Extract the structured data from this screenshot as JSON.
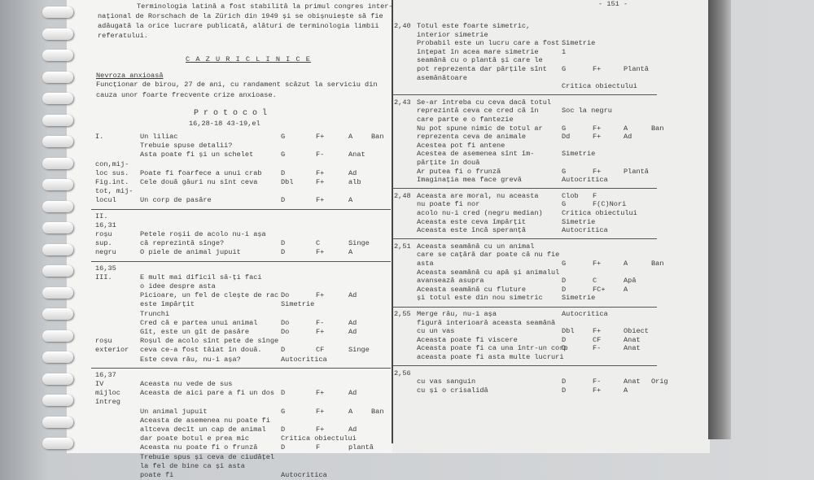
{
  "left": {
    "header_lines": [
      "Terminologia latină a fost stabilită la primul congres inter-",
      "național de Rorschach de la Zürich din 1949 și se obișnuiește să fie",
      "adăugată la orice lucrare publicată, alături de terminologia limbii",
      "referatului."
    ],
    "section_title": "C A Z U R I   C L I N I C E",
    "subtitle": "Nevroza anxioasă",
    "intro": [
      "Funcționar de birou, 27 de ani, cu randament scăzut la serviciu din",
      "cauza unor foarte frecvente crize anxioase."
    ],
    "protocol_title": "P r o t o c o l",
    "protocol_time": "16,28-18 43-19,el",
    "blocks": [
      {
        "rows": [
          {
            "label": "I.",
            "text": "Un liliac",
            "codes": [
              "G",
              "F+",
              "A",
              "Ban"
            ]
          },
          {
            "text": "Trebuie spuse detalii?"
          },
          {
            "text": "Asta poate fi și un schelet",
            "codes": [
              "G",
              "F-",
              "Anat"
            ]
          },
          {
            "label": "con,mij-"
          },
          {
            "label": "loc sus.",
            "text": "Poate fi foarfece a unui crab",
            "codes": [
              "D",
              "F+",
              "Ad"
            ]
          },
          {
            "label": "Fig.int.",
            "text": "Cele două găuri nu sînt ceva",
            "codes": [
              "Dbl",
              "F+",
              "alb"
            ]
          },
          {
            "label": "tot, mij-"
          },
          {
            "label": "locul",
            "text": "Un corp de pasăre",
            "codes": [
              "D",
              "F+",
              "A"
            ]
          }
        ]
      },
      {
        "rows": [
          {
            "label": "II."
          },
          {
            "label": "16,31"
          },
          {
            "label": "roșu",
            "text": "Petele roșii de acolo nu-i așa"
          },
          {
            "label": "sup.",
            "text": "că reprezintă sînge?",
            "codes": [
              "D",
              "C",
              "Singe"
            ]
          },
          {
            "label": "negru",
            "text": "O piele de animal jupuit",
            "codes": [
              "D",
              "F+",
              "A"
            ]
          }
        ]
      },
      {
        "rows": [
          {
            "label": "16,35"
          },
          {
            "label": "III.",
            "text": "E mult mai dificil să-ți faci"
          },
          {
            "text": "o idee despre asta"
          },
          {
            "text": "Picioare, un fel de clește de rac",
            "codes": [
              "Do",
              "F+",
              "Ad"
            ]
          },
          {
            "text": "este împărțit",
            "codes": [
              "Simetrie"
            ]
          },
          {
            "text": "Trunchi"
          },
          {
            "text": "Cred că e partea unui animal",
            "codes": [
              "Do",
              "F-",
              "Ad"
            ]
          },
          {
            "text": "Gît, este un gît de pasăre",
            "codes": [
              "Do",
              "F+",
              "Ad"
            ]
          },
          {
            "label": "roșu",
            "text": "Roșul de acolo sînt pete de sînge"
          },
          {
            "label": "exterior",
            "text": "ceva ce-a fost tăiat în două.",
            "codes": [
              "D",
              "CF",
              "Singe"
            ]
          },
          {
            "text": "Este ceva rău, nu-i așa?",
            "codes": [
              "Autocritica"
            ]
          }
        ]
      },
      {
        "rows": [
          {
            "label": "16,37"
          },
          {
            "label": "IV",
            "text": "Aceasta nu vede de sus"
          },
          {
            "label": "mijloc",
            "text": "Aceasta de aici pare a fi un dos",
            "codes": [
              "D",
              "F+",
              "Ad"
            ]
          },
          {
            "label": "întreg"
          },
          {
            "text": "Un animal jupuit",
            "codes": [
              "G",
              "F+",
              "A",
              "Ban"
            ]
          },
          {
            "text": "Aceasta de asemenea nu poate fi"
          },
          {
            "text": "altceva decît un cap de animal",
            "codes": [
              "D",
              "F+",
              "Ad"
            ]
          },
          {
            "text": "dar poate botul e prea mic",
            "codes": [
              "Critica obiectului"
            ]
          },
          {
            "text": "Aceasta nu poate fi o frunză",
            "codes": [
              "D",
              "F",
              "plantă"
            ]
          },
          {
            "text": "Trebuie spus și ceva de ciudățel"
          },
          {
            "text": "la fel de bine ca și asta"
          },
          {
            "text": "poate fi",
            "codes": [
              "Autocritica"
            ]
          }
        ]
      }
    ]
  },
  "right": {
    "page_number": "- 151 -",
    "blocks": [
      {
        "rows": [
          {
            "label": "2,40",
            "text": "Totul este foarte simetric,"
          },
          {
            "text": "interior simetrie"
          },
          {
            "text": "Probabil este un lucru care a fost",
            "codes": [
              "Simetrie"
            ]
          },
          {
            "text": "înțepat în acea mare simetrie",
            "codes": [
              "1"
            ]
          },
          {
            "text": "seamănă cu o plantă și care le"
          },
          {
            "text": "pot reprezenta dar părțile sînt",
            "codes": [
              "G",
              "F+",
              "Plantă"
            ]
          },
          {
            "text": "asemănătoare"
          },
          {
            "codes": [
              "Critica obiectului"
            ]
          }
        ]
      },
      {
        "rows": [
          {
            "label": "2,43",
            "text": "Se-ar întreba cu ceva dacă totul"
          },
          {
            "text": "reprezintă ceva ce cred că în",
            "codes": [
              "Soc la negru"
            ]
          },
          {
            "text": "care parte e o fantezie"
          },
          {
            "text": "Nu pot spune nimic de totul ar",
            "codes": [
              "G",
              "F+",
              "A",
              "Ban"
            ]
          },
          {
            "text": "reprezenta ceva de animale",
            "codes": [
              "Dd",
              "F+",
              "Ad"
            ]
          },
          {
            "text": "Acestea pot fi antene"
          },
          {
            "text": "Acestea de asemenea sînt îm-",
            "codes": [
              "Simetrie"
            ]
          },
          {
            "text": "părțite în două"
          },
          {
            "text": "Ar putea fi o frunză",
            "codes": [
              "G",
              "F+",
              "Plantă"
            ]
          },
          {
            "text": "Imaginația mea face grevă",
            "codes": [
              "Autocritica"
            ]
          }
        ]
      },
      {
        "rows": [
          {
            "label": "2,48",
            "text": "Aceasta are moral, nu aceasta",
            "codes": [
              "Clob",
              "F"
            ]
          },
          {
            "text": "nu poate fi nor",
            "codes": [
              "G",
              "F(C)Nori"
            ]
          },
          {
            "text": "acolo nu-i cred (negru median)",
            "codes": [
              "Critica obiectului"
            ]
          },
          {
            "text": "Aceasta este ceva împărțit",
            "codes": [
              "Simetrie"
            ]
          },
          {
            "text": "Aceasta este încă speranță",
            "codes": [
              "Autocritica"
            ]
          }
        ]
      },
      {
        "rows": [
          {
            "label": "2,51",
            "text": "Aceasta seamănă cu un animal"
          },
          {
            "text": "care se cațără dar poate că nu fie"
          },
          {
            "text": "asta",
            "codes": [
              "G",
              "F+",
              "A",
              "Ban"
            ]
          },
          {
            "text": "Aceasta seamănă cu apă și animalul"
          },
          {
            "text": "avansează asupra",
            "codes": [
              "D",
              "C",
              "Apă"
            ]
          },
          {
            "text": "Aceasta seamănă cu fluture",
            "codes": [
              "D",
              "FC+",
              "A"
            ]
          },
          {
            "text": "și totul este din nou simetric",
            "codes": [
              "Simetrie"
            ]
          }
        ]
      },
      {
        "rows": [
          {
            "label": "2,55",
            "text": "Merge rău, nu-i așa",
            "codes": [
              "Autocritica"
            ]
          },
          {
            "text": "figură interioară aceasta seamănă"
          },
          {
            "text": "cu un vas",
            "codes": [
              "Dbl",
              "F+",
              "Obiect"
            ]
          },
          {
            "text": "Aceasta poate fi viscere",
            "codes": [
              "D",
              "CF",
              "Anat"
            ]
          },
          {
            "text": "Aceasta poate fi ca una într-un corp",
            "codes": [
              "D",
              "F-",
              "Anat"
            ]
          },
          {
            "text": "aceasta poate fi asta multe lucruri"
          }
        ]
      },
      {
        "rows": [
          {
            "label": "2,56"
          },
          {
            "text": "cu vas sanguin",
            "codes": [
              "D",
              "F-",
              "Anat",
              "Orig"
            ]
          },
          {
            "text": "cu și o crisalidă",
            "codes": [
              "D",
              "F+",
              "A"
            ]
          }
        ]
      }
    ]
  }
}
